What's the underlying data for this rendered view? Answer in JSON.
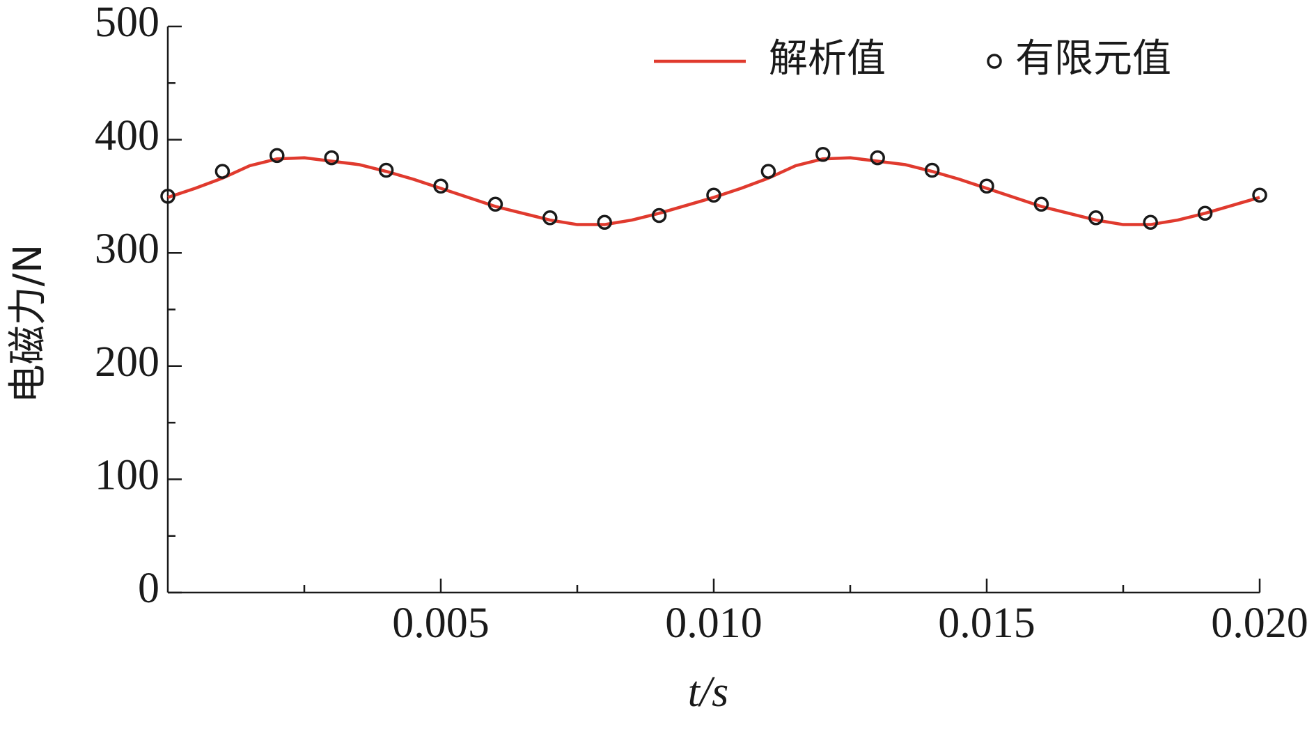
{
  "chart_data": {
    "type": "line",
    "xlabel": "t/s",
    "ylabel": "电磁力/N",
    "xlim": [
      0,
      0.02
    ],
    "ylim": [
      0,
      500
    ],
    "xticks": [
      0.005,
      {
        "value": 0.01,
        "label": "0.010"
      },
      0.015,
      {
        "value": 0.02,
        "label": "0.020"
      }
    ],
    "xminorticks": [
      0.0025,
      0.0075,
      0.0125,
      0.0175
    ],
    "yticks": [
      0,
      100,
      200,
      300,
      400,
      500
    ],
    "yminorticks": [
      50,
      150,
      250,
      350,
      450
    ],
    "legend": "top-right",
    "series": [
      {
        "name": "解析值",
        "kind": "line",
        "color": "#e03a2e",
        "x": [
          0,
          0.0005,
          0.001,
          0.0015,
          0.002,
          0.0025,
          0.003,
          0.0035,
          0.004,
          0.0045,
          0.005,
          0.0055,
          0.006,
          0.0065,
          0.007,
          0.0075,
          0.008,
          0.0085,
          0.009,
          0.0095,
          0.01,
          0.0105,
          0.011,
          0.0115,
          0.012,
          0.0125,
          0.013,
          0.0135,
          0.014,
          0.0145,
          0.015,
          0.0155,
          0.016,
          0.0165,
          0.017,
          0.0175,
          0.018,
          0.0185,
          0.019,
          0.0195,
          0.02
        ],
        "values": [
          349,
          357,
          366,
          377,
          383,
          384,
          381,
          378,
          372,
          365,
          357,
          349,
          341,
          335,
          329,
          325,
          325,
          329,
          335,
          342,
          349,
          357,
          366,
          377,
          383,
          384,
          381,
          378,
          372,
          365,
          357,
          349,
          341,
          335,
          329,
          325,
          325,
          329,
          335,
          342,
          349
        ]
      },
      {
        "name": "有限元值",
        "kind": "scatter",
        "color": "#1a1a1a",
        "x": [
          0,
          0.001,
          0.002,
          0.003,
          0.004,
          0.005,
          0.006,
          0.007,
          0.008,
          0.009,
          0.01,
          0.011,
          0.012,
          0.013,
          0.014,
          0.015,
          0.016,
          0.017,
          0.018,
          0.019,
          0.02
        ],
        "values": [
          350,
          372,
          386,
          384,
          373,
          359,
          343,
          331,
          327,
          333,
          351,
          372,
          387,
          384,
          373,
          359,
          343,
          331,
          327,
          335,
          351
        ]
      }
    ]
  }
}
